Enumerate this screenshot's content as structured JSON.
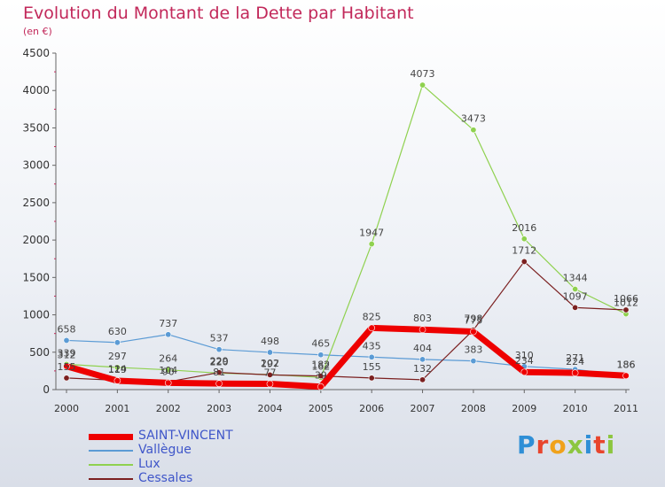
{
  "header": {
    "title": "Evolution du Montant de la Dette par Habitant",
    "subtitle": "(en €)"
  },
  "logo": {
    "letters": [
      "P",
      "r",
      "o",
      "x",
      "i",
      "t",
      "i"
    ],
    "colors": [
      "#2f8fd6",
      "#e8452d",
      "#f0a21b",
      "#8cc63f",
      "#2f8fd6",
      "#e8452d",
      "#8cc63f"
    ]
  },
  "chart_data": {
    "type": "line",
    "title": "Evolution du Montant de la Dette par Habitant",
    "ylabel": "(en €)",
    "x": [
      "2000",
      "2001",
      "2002",
      "2003",
      "2004",
      "2005",
      "2006",
      "2007",
      "2008",
      "2009",
      "2010",
      "2011"
    ],
    "ylim": [
      0,
      4500
    ],
    "yticks": [
      "0",
      "500",
      "1000",
      "1500",
      "2000",
      "2500",
      "3000",
      "3500",
      "4000",
      "4500"
    ],
    "grid": false,
    "legend": "bottom-left",
    "series": [
      {
        "name": "Vallègue",
        "color": "#5b9bd5",
        "width": 1.2,
        "values": [
          658,
          630,
          737,
          537,
          498,
          465,
          435,
          404,
          383,
          310,
          271,
          186
        ],
        "labels": [
          "658",
          "630",
          "737",
          "537",
          "498",
          "465",
          "435",
          "404",
          "383",
          "310",
          "271",
          "186"
        ]
      },
      {
        "name": "Lux",
        "color": "#8fd14f",
        "width": 1.2,
        "values": [
          339,
          297,
          264,
          220,
          202,
          162,
          1947,
          4073,
          3473,
          2016,
          1344,
          1012
        ],
        "labels": [
          "339",
          "297",
          "264",
          "220",
          "202",
          "162",
          "1947",
          "4073",
          "3473",
          "2016",
          "1344",
          "1012"
        ]
      },
      {
        "name": "Cessales",
        "color": "#7b2020",
        "width": 1.2,
        "values": [
          155,
          124,
          104,
          229,
          197,
          182,
          155,
          132,
          798,
          1712,
          1097,
          1066
        ],
        "labels": [
          "155",
          "124",
          "104",
          "229",
          "197",
          "182",
          "155",
          "132",
          "798",
          "1712",
          "1097",
          "1066"
        ]
      },
      {
        "name": "SAINT-VINCENT",
        "color": "#ee0000",
        "width": 7,
        "values": [
          312,
          119,
          90,
          81,
          77,
          39,
          825,
          803,
          775,
          234,
          224,
          186
        ],
        "labels": [
          "312",
          "119",
          "90",
          "81",
          "77",
          "39",
          "825",
          "803",
          "775",
          "234",
          "224",
          "186"
        ]
      }
    ],
    "legend_entries": [
      {
        "name": "SAINT-VINCENT",
        "color": "#ee0000",
        "width": 7
      },
      {
        "name": "Vallègue",
        "color": "#5b9bd5",
        "width": 1.5
      },
      {
        "name": "Lux",
        "color": "#8fd14f",
        "width": 1.5
      },
      {
        "name": "Cessales",
        "color": "#7b2020",
        "width": 1.5
      }
    ]
  }
}
